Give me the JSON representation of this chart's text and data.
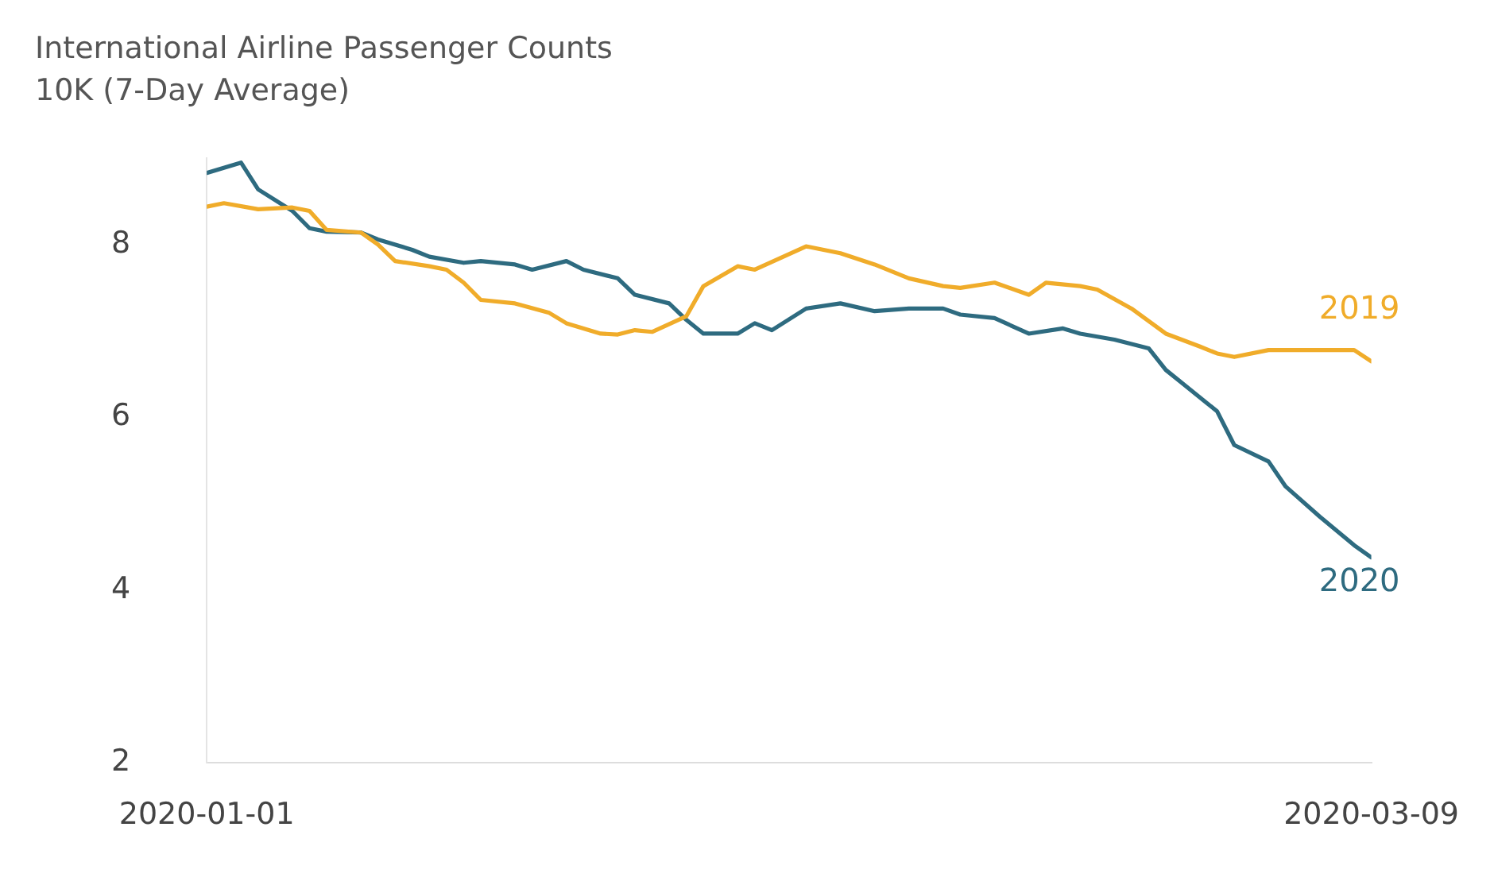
{
  "chart_data": {
    "type": "line",
    "title": "International Airline Passenger Counts",
    "subtitle": "10K (7-Day Average)",
    "xlim": [
      "2020-01-01",
      "2020-03-09"
    ],
    "xticks": [
      "2020-01-01",
      "2020-03-09"
    ],
    "ylim": [
      2,
      9
    ],
    "yticks": [
      2,
      4,
      6,
      8
    ],
    "grid": false,
    "legend": false,
    "marker": "none",
    "line_style": "solid",
    "series": [
      {
        "name": "2019",
        "color": "#f0ac2a",
        "x": [
          "2020-01-01",
          "2020-01-02",
          "2020-01-04",
          "2020-01-06",
          "2020-01-07",
          "2020-01-08",
          "2020-01-10",
          "2020-01-11",
          "2020-01-12",
          "2020-01-14",
          "2020-01-15",
          "2020-01-16",
          "2020-01-17",
          "2020-01-19",
          "2020-01-21",
          "2020-01-22",
          "2020-01-24",
          "2020-01-25",
          "2020-01-26",
          "2020-01-27",
          "2020-01-29",
          "2020-01-30",
          "2020-02-01",
          "2020-02-02",
          "2020-02-05",
          "2020-02-07",
          "2020-02-09",
          "2020-02-11",
          "2020-02-13",
          "2020-02-14",
          "2020-02-16",
          "2020-02-18",
          "2020-02-19",
          "2020-02-21",
          "2020-02-22",
          "2020-02-24",
          "2020-02-26",
          "2020-02-28",
          "2020-02-29",
          "2020-03-01",
          "2020-03-03",
          "2020-03-06",
          "2020-03-08",
          "2020-03-09"
        ],
        "values": [
          8.44,
          8.48,
          8.41,
          8.43,
          8.39,
          8.17,
          8.14,
          8.0,
          7.81,
          7.75,
          7.71,
          7.56,
          7.36,
          7.32,
          7.21,
          7.09,
          6.97,
          6.96,
          7.01,
          6.99,
          7.17,
          7.52,
          7.75,
          7.71,
          7.98,
          7.9,
          7.77,
          7.61,
          7.52,
          7.5,
          7.56,
          7.42,
          7.56,
          7.52,
          7.48,
          7.26,
          6.97,
          6.82,
          6.74,
          6.7,
          6.78,
          6.78,
          6.78,
          6.65
        ]
      },
      {
        "name": "2020",
        "color": "#2e6b80",
        "x": [
          "2020-01-01",
          "2020-01-03",
          "2020-01-04",
          "2020-01-06",
          "2020-01-07",
          "2020-01-08",
          "2020-01-10",
          "2020-01-11",
          "2020-01-13",
          "2020-01-14",
          "2020-01-16",
          "2020-01-17",
          "2020-01-19",
          "2020-01-20",
          "2020-01-22",
          "2020-01-23",
          "2020-01-25",
          "2020-01-26",
          "2020-01-28",
          "2020-01-29",
          "2020-01-30",
          "2020-02-01",
          "2020-02-02",
          "2020-02-03",
          "2020-02-05",
          "2020-02-07",
          "2020-02-09",
          "2020-02-11",
          "2020-02-13",
          "2020-02-14",
          "2020-02-16",
          "2020-02-18",
          "2020-02-20",
          "2020-02-21",
          "2020-02-23",
          "2020-02-25",
          "2020-02-26",
          "2020-02-27",
          "2020-02-29",
          "2020-03-01",
          "2020-03-03",
          "2020-03-04",
          "2020-03-06",
          "2020-03-08",
          "2020-03-09"
        ],
        "values": [
          8.83,
          8.95,
          8.64,
          8.39,
          8.19,
          8.15,
          8.14,
          8.06,
          7.94,
          7.86,
          7.79,
          7.81,
          7.77,
          7.71,
          7.81,
          7.71,
          7.61,
          7.42,
          7.32,
          7.13,
          6.97,
          6.97,
          7.09,
          7.01,
          7.26,
          7.32,
          7.23,
          7.26,
          7.26,
          7.19,
          7.15,
          6.97,
          7.03,
          6.97,
          6.9,
          6.8,
          6.55,
          6.39,
          6.07,
          5.68,
          5.49,
          5.2,
          4.85,
          4.52,
          4.38
        ]
      }
    ]
  }
}
